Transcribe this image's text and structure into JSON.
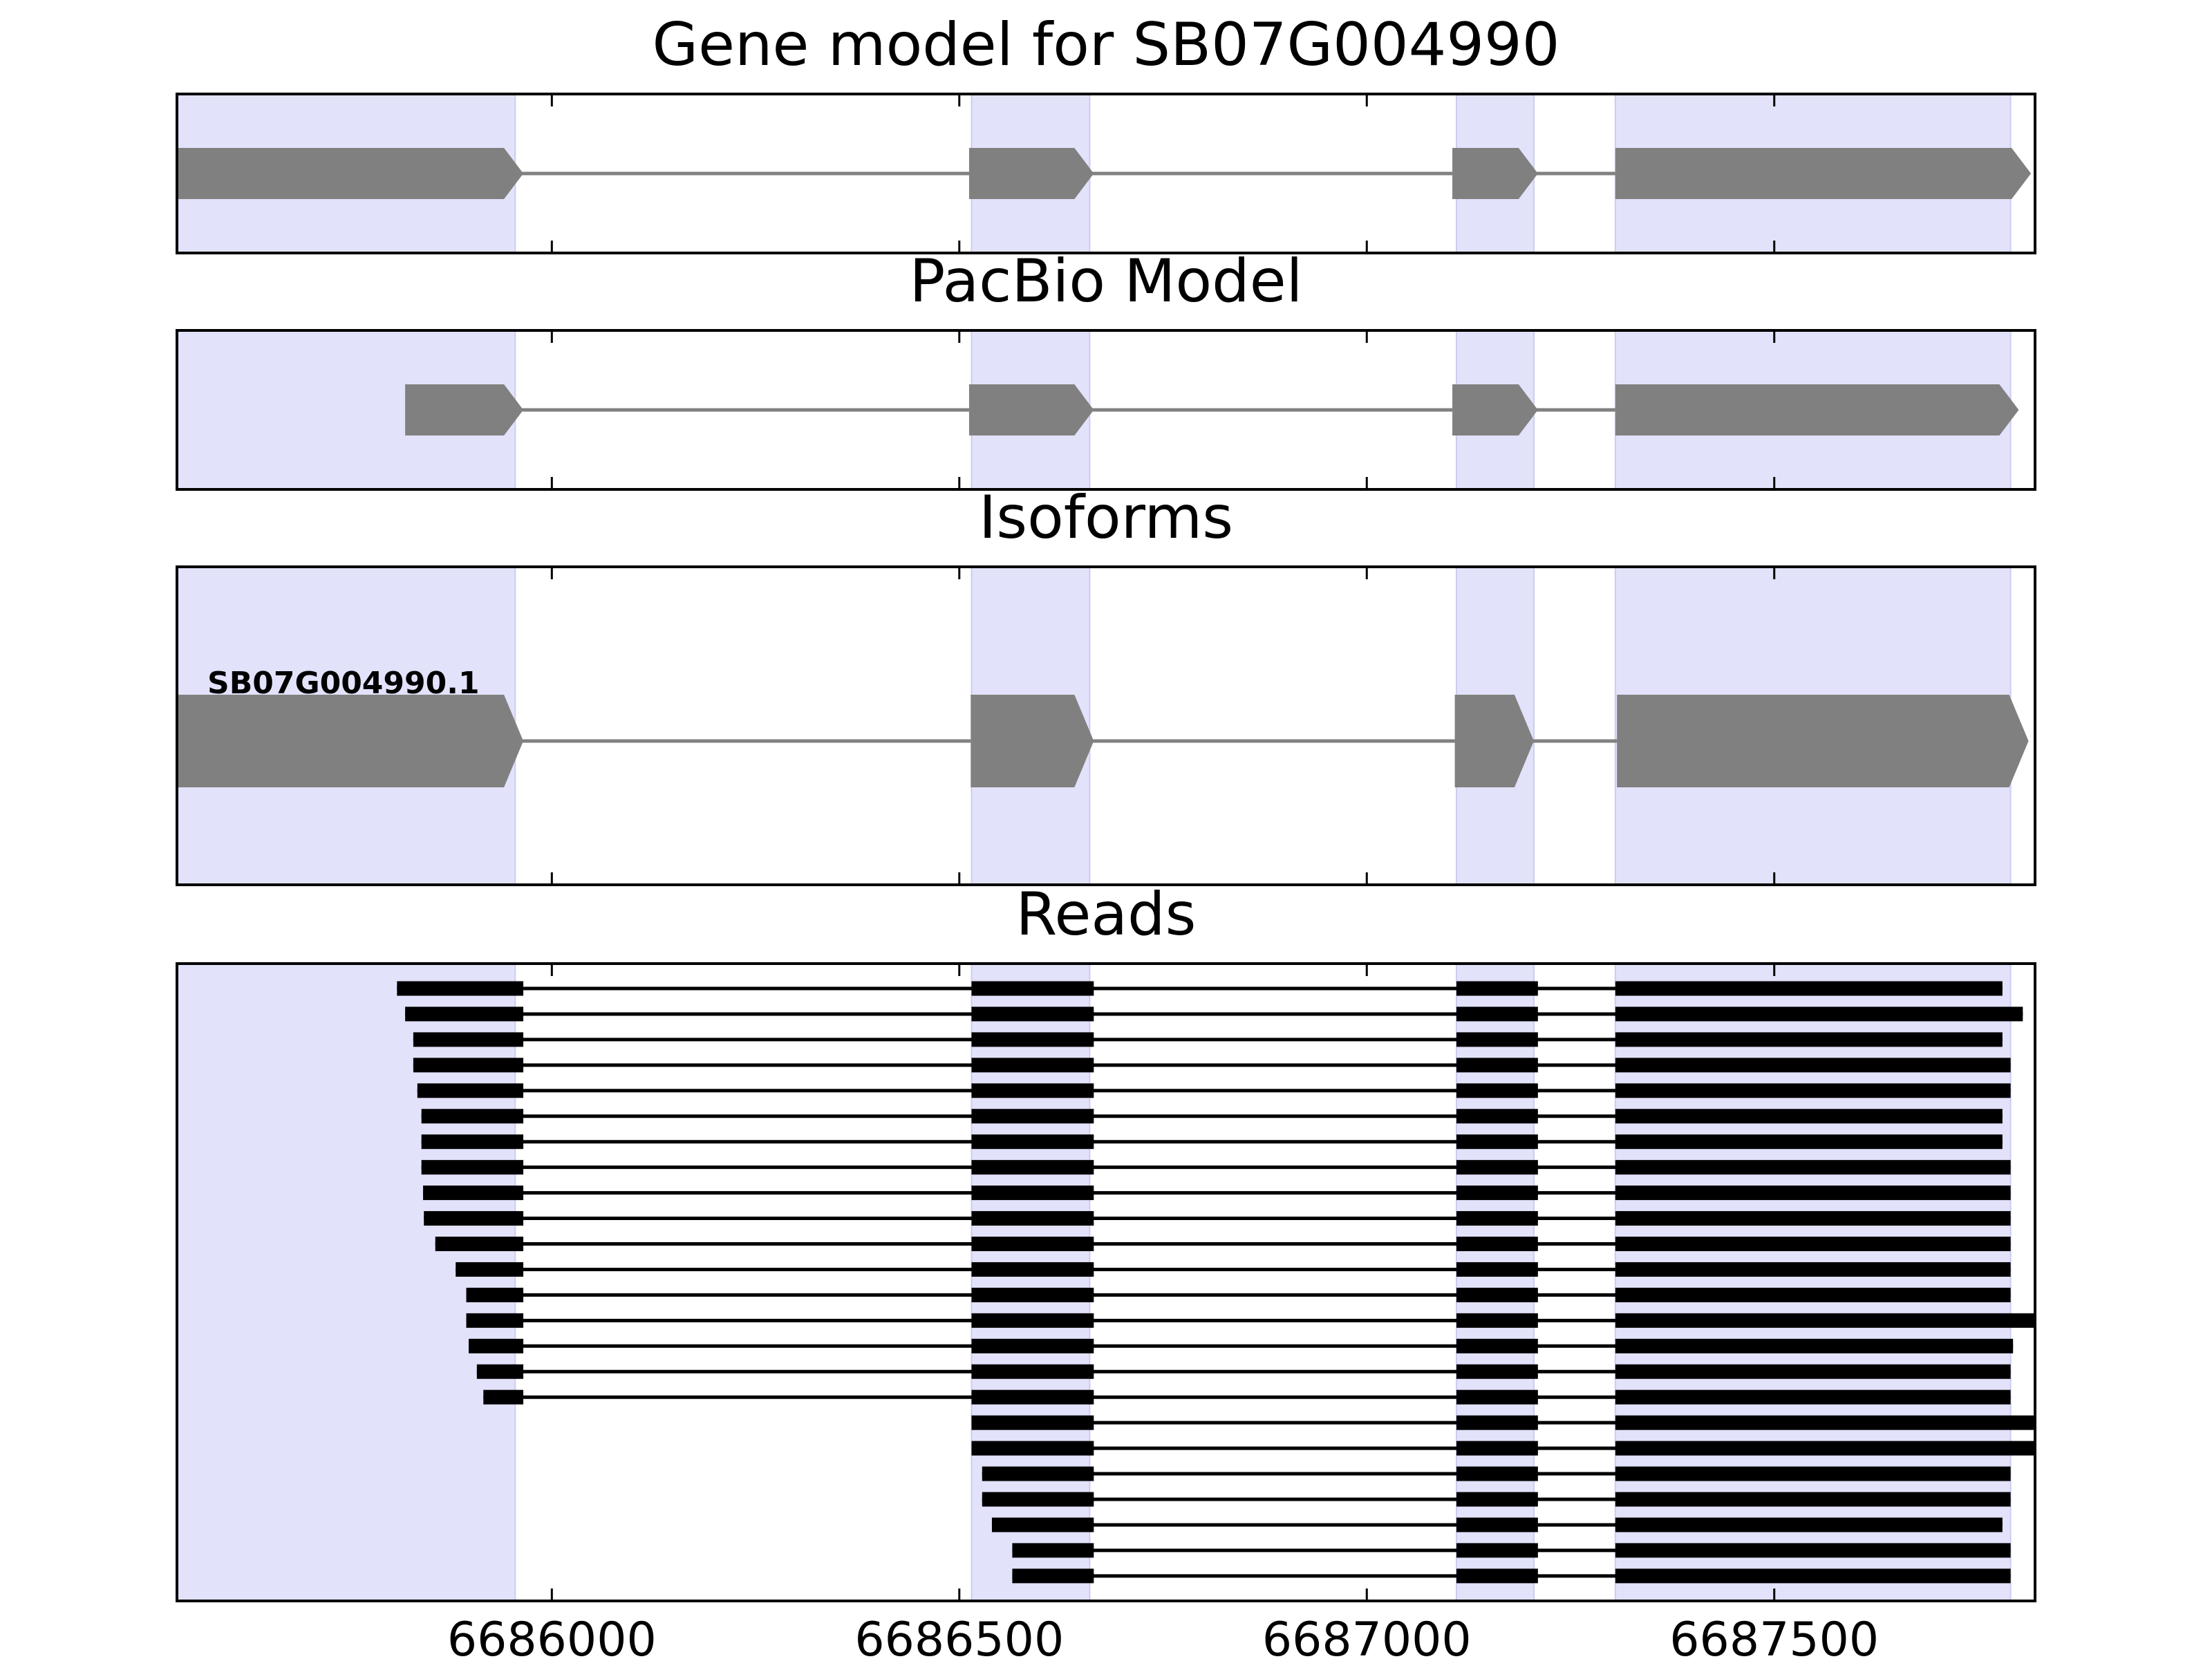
{
  "chart_data": [
    {
      "type": "gene-model",
      "title": "Gene model for SB07G004990",
      "xlim": [
        6685540,
        6687820
      ],
      "exons": [
        [
          6685540,
          6685965
        ],
        [
          6686512,
          6686665
        ],
        [
          6687105,
          6687210
        ],
        [
          6687305,
          6687815
        ]
      ],
      "strand": "+",
      "highlight_regions": [
        [
          6685540,
          6685955
        ],
        [
          6686515,
          6686660
        ],
        [
          6687110,
          6687205
        ],
        [
          6687305,
          6687790
        ]
      ]
    },
    {
      "type": "gene-model",
      "title": "PacBio Model",
      "xlim": [
        6685540,
        6687820
      ],
      "exons": [
        [
          6685820,
          6685965
        ],
        [
          6686512,
          6686665
        ],
        [
          6687105,
          6687210
        ],
        [
          6687305,
          6687800
        ]
      ],
      "strand": "+",
      "highlight_regions": [
        [
          6685540,
          6685955
        ],
        [
          6686515,
          6686660
        ],
        [
          6687110,
          6687205
        ],
        [
          6687305,
          6687790
        ]
      ]
    },
    {
      "type": "gene-model",
      "title": "Isoforms",
      "xlim": [
        6685540,
        6687820
      ],
      "isoforms": [
        {
          "name": "SB07G004990.1",
          "exons": [
            [
              6685540,
              6685965
            ],
            [
              6686514,
              6686665
            ],
            [
              6687108,
              6687205
            ],
            [
              6687307,
              6687812
            ]
          ]
        }
      ],
      "strand": "+",
      "highlight_regions": [
        [
          6685540,
          6685955
        ],
        [
          6686515,
          6686660
        ],
        [
          6687110,
          6687205
        ],
        [
          6687305,
          6687790
        ]
      ]
    },
    {
      "type": "reads",
      "title": "Reads",
      "xlim": [
        6685540,
        6687820
      ],
      "x_ticks": [
        6686000,
        6686500,
        6687000,
        6687500
      ],
      "x_tick_labels": [
        "6686000",
        "6686500",
        "6687000",
        "6687500"
      ],
      "highlight_regions": [
        [
          6685540,
          6685955
        ],
        [
          6686515,
          6686660
        ],
        [
          6687110,
          6687205
        ],
        [
          6687305,
          6687790
        ]
      ],
      "reads": [
        {
          "start": 6685810,
          "end": 6687780
        },
        {
          "start": 6685820,
          "end": 6687805
        },
        {
          "start": 6685830,
          "end": 6687780
        },
        {
          "start": 6685830,
          "end": 6687790
        },
        {
          "start": 6685835,
          "end": 6687790
        },
        {
          "start": 6685840,
          "end": 6687780
        },
        {
          "start": 6685840,
          "end": 6687780
        },
        {
          "start": 6685840,
          "end": 6687790
        },
        {
          "start": 6685842,
          "end": 6687790
        },
        {
          "start": 6685843,
          "end": 6687790
        },
        {
          "start": 6685857,
          "end": 6687790
        },
        {
          "start": 6685882,
          "end": 6687790
        },
        {
          "start": 6685895,
          "end": 6687790
        },
        {
          "start": 6685895,
          "end": 6687820
        },
        {
          "start": 6685898,
          "end": 6687793
        },
        {
          "start": 6685908,
          "end": 6687790
        },
        {
          "start": 6685916,
          "end": 6687790
        },
        {
          "start": 6686510,
          "end": 6687820
        },
        {
          "start": 6686510,
          "end": 6687820
        },
        {
          "start": 6686528,
          "end": 6687790
        },
        {
          "start": 6686528,
          "end": 6687790
        },
        {
          "start": 6686540,
          "end": 6687780
        },
        {
          "start": 6686565,
          "end": 6687790
        },
        {
          "start": 6686565,
          "end": 6687790
        }
      ],
      "read_exon_template": [
        [
          6685810,
          6685965
        ],
        [
          6686515,
          6686665
        ],
        [
          6687110,
          6687210
        ],
        [
          6687305,
          6687820
        ]
      ]
    }
  ]
}
